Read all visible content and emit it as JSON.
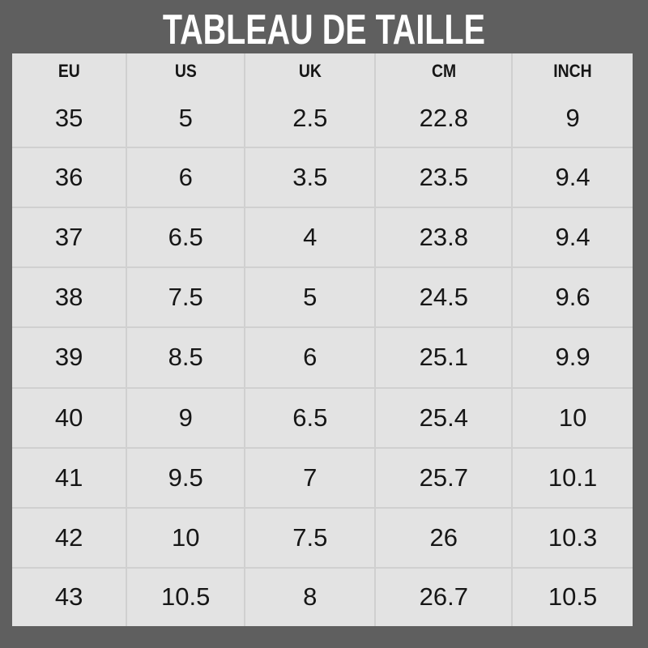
{
  "title": "TABLEAU DE TAILLE",
  "colors": {
    "frame_background": "#5f5f5f",
    "cell_background": "#e3e3e3",
    "grid_line": "#d0d0d0",
    "title_text": "#ffffff",
    "cell_text": "#161616"
  },
  "chart_data": {
    "type": "table",
    "title": "TABLEAU DE TAILLE",
    "columns": [
      "EU",
      "US",
      "UK",
      "CM",
      "INCH"
    ],
    "rows": [
      [
        "35",
        "5",
        "2.5",
        "22.8",
        "9"
      ],
      [
        "36",
        "6",
        "3.5",
        "23.5",
        "9.4"
      ],
      [
        "37",
        "6.5",
        "4",
        "23.8",
        "9.4"
      ],
      [
        "38",
        "7.5",
        "5",
        "24.5",
        "9.6"
      ],
      [
        "39",
        "8.5",
        "6",
        "25.1",
        "9.9"
      ],
      [
        "40",
        "9",
        "6.5",
        "25.4",
        "10"
      ],
      [
        "41",
        "9.5",
        "7",
        "25.7",
        "10.1"
      ],
      [
        "42",
        "10",
        "7.5",
        "26",
        "10.3"
      ],
      [
        "43",
        "10.5",
        "8",
        "26.7",
        "10.5"
      ]
    ]
  }
}
